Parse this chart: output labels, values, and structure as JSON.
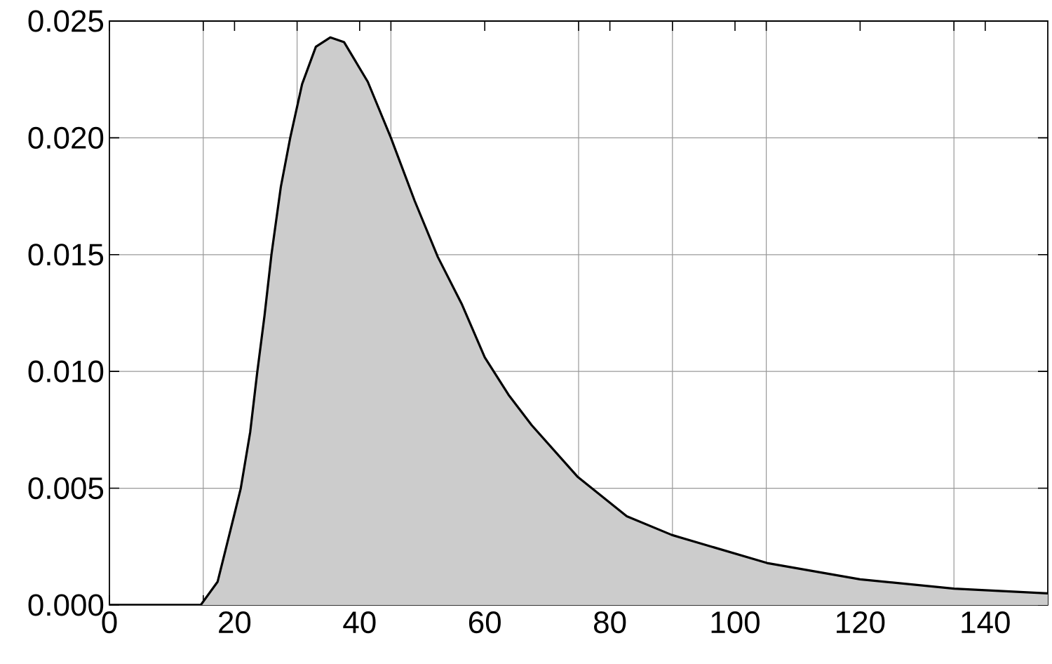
{
  "chart_data": {
    "type": "area",
    "x": [
      0,
      10,
      14.6,
      17.3,
      19.9,
      21,
      22.5,
      23.6,
      24.8,
      25.9,
      27.4,
      28.9,
      30.8,
      33,
      35.3,
      37.5,
      41.3,
      45,
      48.8,
      52.5,
      56.3,
      60,
      63.8,
      67.5,
      74.8,
      82.7,
      89.9,
      105.1,
      120,
      135,
      150
    ],
    "series": [
      {
        "color": "#cccccc",
        "values": [
          0,
          0,
          0,
          0.001,
          0.0038,
          0.005,
          0.0074,
          0.0099,
          0.0124,
          0.015,
          0.0179,
          0.02,
          0.0223,
          0.0239,
          0.0243,
          0.0241,
          0.0224,
          0.02,
          0.0173,
          0.0149,
          0.0129,
          0.0106,
          0.009,
          0.0077,
          0.0055,
          0.0038,
          0.003,
          0.0018,
          0.0011,
          0.0007,
          0.0005
        ]
      }
    ],
    "xlim": [
      0,
      150
    ],
    "xticks": [
      0,
      20,
      40,
      60,
      80,
      100,
      120,
      140,
      {
        "value": 15,
        "label": null
      },
      {
        "value": 30,
        "label": null
      },
      {
        "value": 45,
        "label": null
      },
      {
        "value": 75,
        "label": null
      },
      {
        "value": 90,
        "label": null
      },
      {
        "value": 105,
        "label": null
      },
      {
        "value": 135,
        "label": null
      }
    ],
    "ylim": [
      0,
      0.025
    ],
    "yticks": [
      {
        "value": 0,
        "label": "0.000"
      },
      {
        "value": 0.005,
        "label": "0.005"
      },
      {
        "value": 0.01,
        "label": "0.010"
      },
      {
        "value": 0.015,
        "label": "0.015"
      },
      {
        "value": 0.02,
        "label": "0.020"
      },
      {
        "value": 0.025,
        "label": "0.025"
      }
    ],
    "grid": true
  }
}
